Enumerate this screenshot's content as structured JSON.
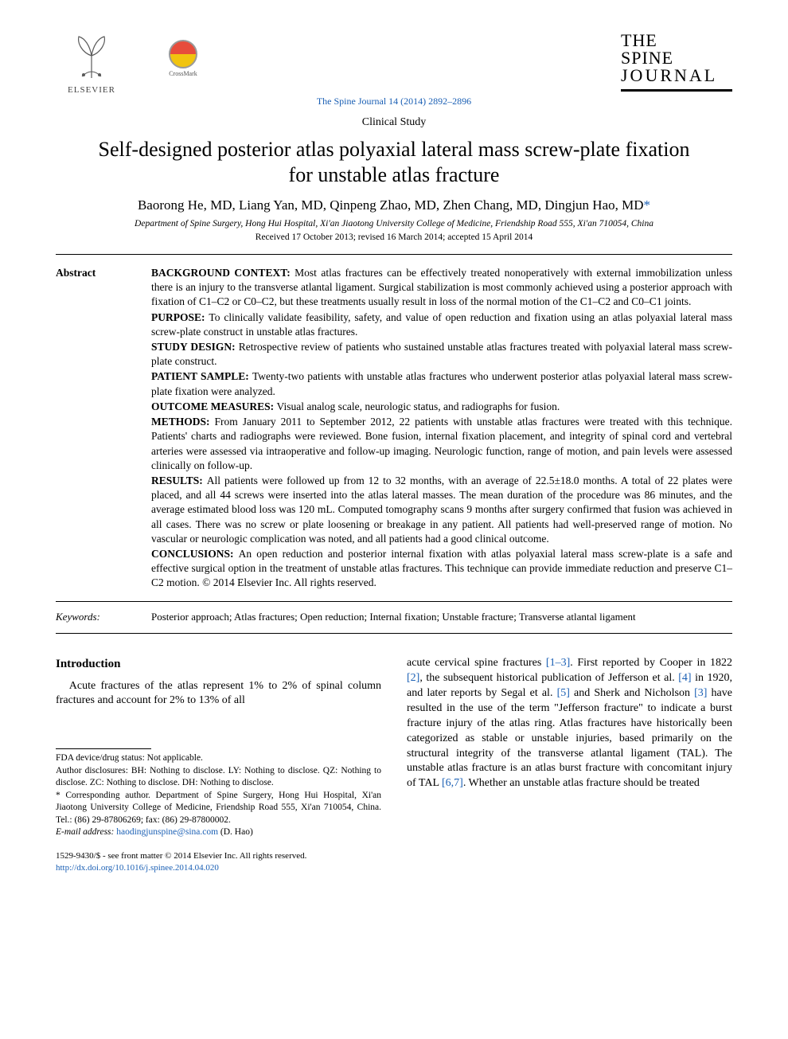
{
  "colors": {
    "link": "#1a5fb4",
    "text": "#000000",
    "background": "#ffffff",
    "rule": "#000000"
  },
  "header": {
    "publisher_label": "ELSEVIER",
    "crossmark_label": "CrossMark",
    "journal_logo_line1": "THE",
    "journal_logo_line2": "SPINE",
    "journal_logo_line3": "JOURNAL",
    "citation": "The Spine Journal 14 (2014) 2892–2896",
    "article_type": "Clinical Study"
  },
  "title": "Self-designed posterior atlas polyaxial lateral mass screw-plate fixation for unstable atlas fracture",
  "authors": "Baorong He, MD, Liang Yan, MD, Qinpeng Zhao, MD, Zhen Chang, MD, Dingjun Hao, MD",
  "corr_marker": "*",
  "affiliation": "Department of Spine Surgery, Hong Hui Hospital, Xi'an Jiaotong University College of Medicine, Friendship Road 555, Xi'an 710054, China",
  "dates": "Received 17 October 2013; revised 16 March 2014; accepted 15 April 2014",
  "abstract": {
    "label": "Abstract",
    "sections": [
      {
        "heading": "BACKGROUND CONTEXT:",
        "text": "Most atlas fractures can be effectively treated nonoperatively with external immobilization unless there is an injury to the transverse atlantal ligament. Surgical stabilization is most commonly achieved using a posterior approach with fixation of C1–C2 or C0–C2, but these treatments usually result in loss of the normal motion of the C1–C2 and C0–C1 joints."
      },
      {
        "heading": "PURPOSE:",
        "text": "To clinically validate feasibility, safety, and value of open reduction and fixation using an atlas polyaxial lateral mass screw-plate construct in unstable atlas fractures."
      },
      {
        "heading": "STUDY DESIGN:",
        "text": "Retrospective review of patients who sustained unstable atlas fractures treated with polyaxial lateral mass screw-plate construct."
      },
      {
        "heading": "PATIENT SAMPLE:",
        "text": "Twenty-two patients with unstable atlas fractures who underwent posterior atlas polyaxial lateral mass screw-plate fixation were analyzed."
      },
      {
        "heading": "OUTCOME MEASURES:",
        "text": "Visual analog scale, neurologic status, and radiographs for fusion."
      },
      {
        "heading": "METHODS:",
        "text": "From January 2011 to September 2012, 22 patients with unstable atlas fractures were treated with this technique. Patients' charts and radiographs were reviewed. Bone fusion, internal fixation placement, and integrity of spinal cord and vertebral arteries were assessed via intraoperative and follow-up imaging. Neurologic function, range of motion, and pain levels were assessed clinically on follow-up."
      },
      {
        "heading": "RESULTS:",
        "text": "All patients were followed up from 12 to 32 months, with an average of 22.5±18.0 months. A total of 22 plates were placed, and all 44 screws were inserted into the atlas lateral masses. The mean duration of the procedure was 86 minutes, and the average estimated blood loss was 120 mL. Computed tomography scans 9 months after surgery confirmed that fusion was achieved in all cases. There was no screw or plate loosening or breakage in any patient. All patients had well-preserved range of motion. No vascular or neurologic complication was noted, and all patients had a good clinical outcome."
      },
      {
        "heading": "CONCLUSIONS:",
        "text": "An open reduction and posterior internal fixation with atlas polyaxial lateral mass screw-plate is a safe and effective surgical option in the treatment of unstable atlas fractures. This technique can provide immediate reduction and preserve C1–C2 motion.  © 2014 Elsevier Inc. All rights reserved."
      }
    ]
  },
  "keywords": {
    "label": "Keywords:",
    "text": "Posterior approach; Atlas fractures; Open reduction; Internal fixation; Unstable fracture; Transverse atlantal ligament"
  },
  "body": {
    "intro_heading": "Introduction",
    "col1_p1": "Acute fractures of the atlas represent 1% to 2% of spinal column fractures and account for 2% to 13% of all",
    "col2_p1_a": "acute cervical spine fractures ",
    "col2_ref1": "[1–3]",
    "col2_p1_b": ". First reported by Cooper in 1822 ",
    "col2_ref2": "[2]",
    "col2_p1_c": ", the subsequent historical publication of Jefferson et al. ",
    "col2_ref3": "[4]",
    "col2_p1_d": " in 1920, and later reports by Segal et al. ",
    "col2_ref4": "[5]",
    "col2_p1_e": " and Sherk and Nicholson ",
    "col2_ref5": "[3]",
    "col2_p1_f": " have resulted in the use of the term \"Jefferson fracture\" to indicate a burst fracture injury of the atlas ring. Atlas fractures have historically been categorized as stable or unstable injuries, based primarily on the structural integrity of the transverse atlantal ligament (TAL). The unstable atlas fracture is an atlas burst fracture with concomitant injury of TAL ",
    "col2_ref6": "[6,7]",
    "col2_p1_g": ". Whether an unstable atlas fracture should be treated"
  },
  "footnotes": {
    "fda": "FDA device/drug status: Not applicable.",
    "disclosures": "Author disclosures: BH: Nothing to disclose. LY: Nothing to disclose. QZ: Nothing to disclose. ZC: Nothing to disclose. DH: Nothing to disclose.",
    "corresponding": "* Corresponding author. Department of Spine Surgery, Hong Hui Hospital, Xi'an Jiaotong University College of Medicine, Friendship Road 555, Xi'an 710054, China. Tel.: (86) 29-87806269; fax: (86) 29-87800002.",
    "email_label": "E-mail address: ",
    "email": "haodingjunspine@sina.com",
    "email_suffix": " (D. Hao)"
  },
  "footer": {
    "issn_line": "1529-9430/$ - see front matter © 2014 Elsevier Inc. All rights reserved.",
    "doi": "http://dx.doi.org/10.1016/j.spinee.2014.04.020"
  }
}
